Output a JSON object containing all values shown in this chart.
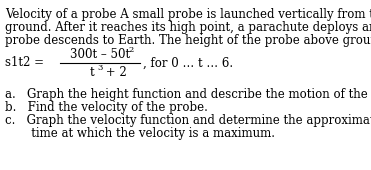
{
  "background_color": "#ffffff",
  "text_color": "#000000",
  "line1": "Velocity of a probe A small probe is launched vertically from the",
  "line2": "ground. After it reaches its high point, a parachute deploys and the",
  "line3": "probe descends to Earth. The height of the probe above ground is",
  "s1t2_label": "s1t2 =",
  "numerator": "300t – 50t",
  "numerator_exp": "2",
  "denominator": "t",
  "denominator_exp": "3",
  "denominator_rest": " + 2",
  "for_text": ", for 0 … t … 6.",
  "item_a": "a.   Graph the height function and describe the motion of the probe.",
  "item_b": "b.   Find the velocity of the probe.",
  "item_c1": "c.   Graph the velocity function and determine the approximate",
  "item_c2": "       time at which the velocity is a maximum.",
  "fontsize": 8.5,
  "fontsize_super": 6.0,
  "font_family": "serif"
}
